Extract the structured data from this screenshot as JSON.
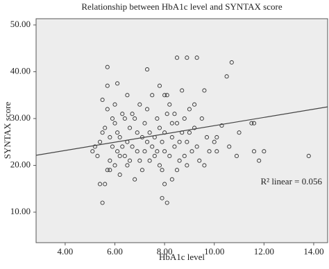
{
  "chart_data": {
    "type": "scatter",
    "title": "Relationship between HbA1c level and SYNTAX score",
    "xlabel": "HbA1c level",
    "ylabel": "SYNTAX score",
    "annotation": "R² linear = 0.056",
    "xlim": [
      2.83,
      14.56
    ],
    "ylim": [
      3.48,
      51.33
    ],
    "xticks": [
      {
        "value": 4,
        "label": "4.00"
      },
      {
        "value": 6,
        "label": "6.00"
      },
      {
        "value": 8,
        "label": "8.00"
      },
      {
        "value": 10,
        "label": "10.00"
      },
      {
        "value": 12,
        "label": "12.00"
      },
      {
        "value": 14,
        "label": "14.00"
      }
    ],
    "yticks": [
      {
        "value": 10,
        "label": "10.00"
      },
      {
        "value": 20,
        "label": "20.00"
      },
      {
        "value": 30,
        "label": "30.00"
      },
      {
        "value": 40,
        "label": "40.00"
      },
      {
        "value": 50,
        "label": "50.00"
      }
    ],
    "color": "#333333",
    "background": "#ededed",
    "x": [
      5.7,
      6.1,
      5.5,
      5.7,
      7.3,
      8.5,
      8.9,
      9.3,
      10.7,
      10.5,
      9.6,
      7.8,
      8.1,
      13.8,
      11.6,
      11.8,
      11.5,
      11.6,
      11.0,
      10.3,
      10.1,
      10.9,
      12.0,
      10.6,
      7.9,
      8.1,
      5.5,
      5.4,
      5.6,
      8.0,
      8.3,
      6.8,
      6.2,
      5.7,
      5.8,
      9.4,
      9.6,
      10.0,
      10.1,
      5.2,
      5.3,
      5.1,
      5.4,
      5.5,
      5.6,
      5.7,
      5.9,
      6.0,
      6.0,
      6.1,
      6.2,
      6.3,
      6.4,
      6.5,
      6.6,
      6.7,
      6.8,
      6.9,
      7.0,
      7.1,
      7.2,
      7.3,
      7.4,
      7.5,
      7.6,
      7.7,
      7.8,
      7.9,
      8.0,
      8.1,
      8.2,
      8.3,
      8.4,
      8.5,
      8.6,
      8.7,
      8.8,
      8.9,
      9.0,
      9.1,
      9.2,
      9.3,
      9.5,
      9.7,
      9.8,
      5.8,
      5.9,
      6.0,
      6.2,
      6.4,
      6.5,
      6.7,
      6.9,
      7.0,
      7.2,
      7.4,
      7.6,
      7.8,
      8.0,
      8.2,
      8.4,
      8.6,
      8.8,
      9.0,
      7.5,
      8.0,
      6.5,
      5.8,
      6.3,
      7.1,
      7.9,
      8.5,
      9.2,
      7.3,
      8.7,
      6.1,
      6.6,
      7.7,
      8.3,
      8.9
    ],
    "y": [
      41,
      37.5,
      34,
      37,
      40.5,
      43,
      43,
      43,
      42,
      39,
      36,
      37,
      35,
      22,
      23,
      21,
      29,
      29,
      27,
      28.5,
      26,
      22,
      23,
      24,
      13,
      12,
      12,
      16,
      16,
      16,
      17,
      17,
      18,
      19,
      19,
      21,
      20,
      25,
      23,
      24,
      22,
      23,
      25,
      27,
      28,
      32,
      30,
      33,
      29,
      27,
      26,
      24,
      22,
      25,
      28,
      31,
      30,
      23,
      21,
      26,
      29,
      32,
      27,
      24,
      22,
      30,
      28,
      25,
      23,
      31,
      33,
      26,
      24,
      29,
      21,
      27,
      30,
      25,
      32,
      23,
      28,
      24,
      30,
      26,
      23,
      21,
      24,
      20,
      22,
      30,
      20,
      24,
      27,
      33,
      23,
      21,
      26,
      20,
      27,
      22,
      31,
      25,
      22,
      27,
      35,
      35,
      35,
      26,
      31,
      19,
      19,
      19,
      33,
      25,
      36,
      23,
      21,
      23,
      29,
      20
    ],
    "fit_line": {
      "x": [
        2.83,
        14.56
      ],
      "y": [
        22.15,
        32.5
      ]
    }
  }
}
